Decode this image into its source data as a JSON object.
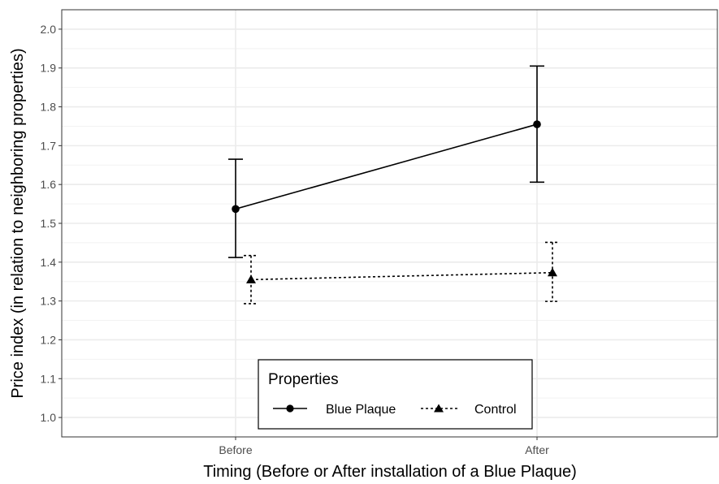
{
  "chart_data": {
    "type": "line",
    "xlabel": "Timing (Before or After installation of a Blue Plaque)",
    "ylabel": "Price index (in relation to neighboring properties)",
    "categories": [
      "Before",
      "After"
    ],
    "ylim": [
      0.95,
      2.05
    ],
    "yticks": [
      1.0,
      1.1,
      1.2,
      1.3,
      1.4,
      1.5,
      1.6,
      1.7,
      1.8,
      1.9,
      2.0
    ],
    "ytick_labels": [
      "1.0",
      "1.1",
      "1.2",
      "1.3",
      "1.4",
      "1.5",
      "1.6",
      "1.7",
      "1.8",
      "1.9",
      "2.0"
    ],
    "grid": true,
    "legend": {
      "title": "Properties",
      "placement": "bottom-center"
    },
    "series": [
      {
        "name": "Blue Plaque",
        "marker": "circle",
        "line_style": "solid",
        "color": "#000000",
        "values": [
          1.537,
          1.755
        ],
        "error_low": [
          1.412,
          1.606
        ],
        "error_high": [
          1.665,
          1.905
        ]
      },
      {
        "name": "Control",
        "marker": "triangle",
        "line_style": "dotted",
        "color": "#000000",
        "values": [
          1.355,
          1.373
        ],
        "error_low": [
          1.293,
          1.299
        ],
        "error_high": [
          1.417,
          1.451
        ]
      }
    ]
  }
}
